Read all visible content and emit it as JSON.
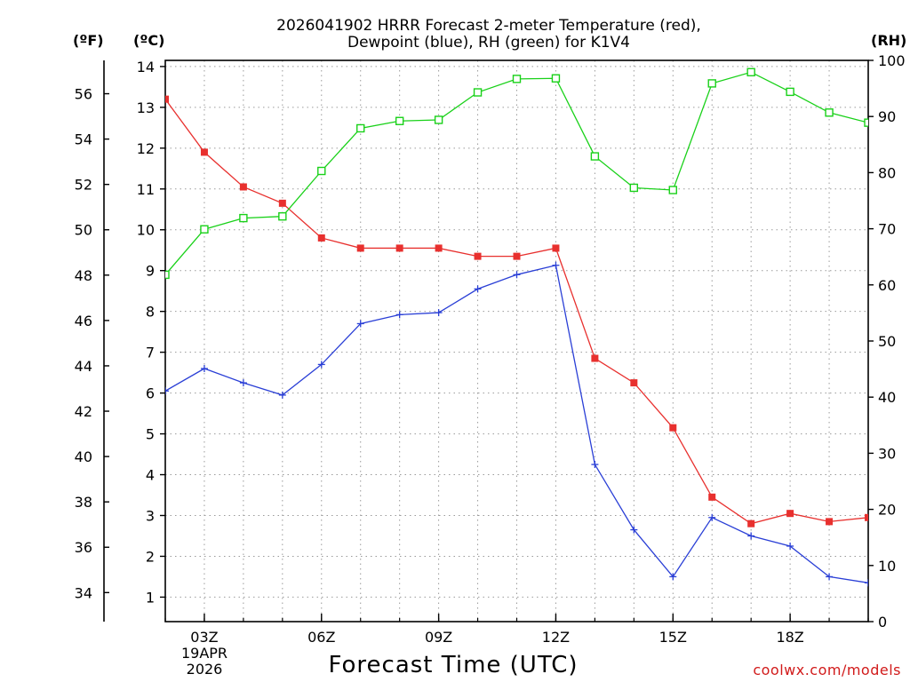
{
  "header": {
    "title_line1": "2026041902 HRRR Forecast 2-meter Temperature (red),",
    "title_line2": "Dewpoint (blue), RH (green) for K1V4"
  },
  "axes_units": {
    "fahrenheit": "(ºF)",
    "celsius": "(ºC)",
    "rh": "(RH)"
  },
  "footer": {
    "xlabel": "Forecast Time (UTC)",
    "date_line1": "19APR",
    "date_line2": "2026",
    "credit": "coolwx.com/models"
  },
  "colors": {
    "temperature": "#e8302e",
    "dewpoint": "#2a3fd6",
    "rh": "#19d119",
    "grid": "#9a9a9a"
  },
  "chart_data": {
    "type": "line",
    "title": "2026041902 HRRR Forecast 2-meter Temperature (red), Dewpoint (blue), RH (green) for K1V4",
    "xlabel": "Forecast Time (UTC)",
    "x": [
      2,
      3,
      4,
      5,
      6,
      7,
      8,
      9,
      10,
      11,
      12,
      13,
      14,
      15,
      16,
      17,
      18,
      19,
      20
    ],
    "xlim": [
      2,
      20
    ],
    "x_ticks": [
      3,
      6,
      9,
      12,
      15,
      18
    ],
    "x_tick_labels": [
      "03Z",
      "06Z",
      "09Z",
      "12Z",
      "15Z",
      "18Z"
    ],
    "ylim_celsius": [
      0.4,
      14.15
    ],
    "y_ticks_celsius": [
      1,
      2,
      3,
      4,
      5,
      6,
      7,
      8,
      9,
      10,
      11,
      12,
      13,
      14
    ],
    "y_ticks_fahrenheit": [
      34,
      36,
      38,
      40,
      42,
      44,
      46,
      48,
      50,
      52,
      54,
      56
    ],
    "ylim_rh": [
      0,
      100
    ],
    "y_ticks_rh": [
      0,
      10,
      20,
      30,
      40,
      50,
      60,
      70,
      80,
      90,
      100
    ],
    "series": [
      {
        "name": "Temperature",
        "axis": "celsius",
        "marker": "filled-square",
        "values": [
          13.2,
          11.9,
          11.05,
          10.65,
          9.8,
          9.55,
          9.55,
          9.55,
          9.35,
          9.35,
          9.55,
          6.85,
          6.25,
          5.15,
          3.45,
          2.8,
          3.05,
          2.85,
          2.95
        ]
      },
      {
        "name": "Dewpoint",
        "axis": "celsius",
        "marker": "plus",
        "values": [
          6.05,
          6.6,
          6.25,
          5.95,
          6.7,
          7.7,
          7.92,
          7.97,
          8.55,
          8.9,
          9.13,
          4.25,
          2.65,
          1.5,
          2.95,
          2.5,
          2.25,
          1.5,
          1.35
        ]
      },
      {
        "name": "RH",
        "axis": "rh",
        "marker": "open-square",
        "values": [
          61.8,
          69.9,
          71.9,
          72.2,
          80.3,
          87.9,
          89.2,
          89.4,
          94.3,
          96.7,
          96.8,
          82.9,
          77.3,
          76.9,
          95.9,
          97.9,
          94.4,
          90.7,
          88.9
        ]
      }
    ]
  }
}
